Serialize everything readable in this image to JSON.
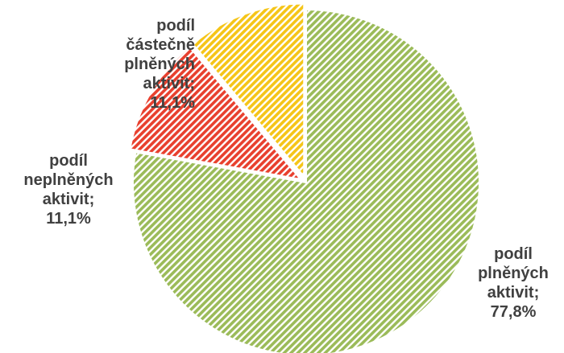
{
  "chart_data": {
    "type": "pie",
    "title": "",
    "start_angle_deg": 0,
    "direction": "clockwise",
    "slices": [
      {
        "label": [
          "podíl",
          "plněných",
          "aktivit;",
          "77,8%"
        ],
        "value": 77.8,
        "color": "#9bbb59",
        "pattern": "hatch"
      },
      {
        "label": [
          "podíl",
          "neplněných",
          "aktivit;",
          "11,1%"
        ],
        "value": 11.1,
        "color": "#e8402e",
        "pattern": "hatch",
        "exploded": true
      },
      {
        "label": [
          "podíl",
          "částečně",
          "plněných",
          "aktivit;",
          "11,1%"
        ],
        "value": 11.1,
        "color": "#f5c518",
        "pattern": "hatch",
        "exploded": true
      }
    ]
  }
}
